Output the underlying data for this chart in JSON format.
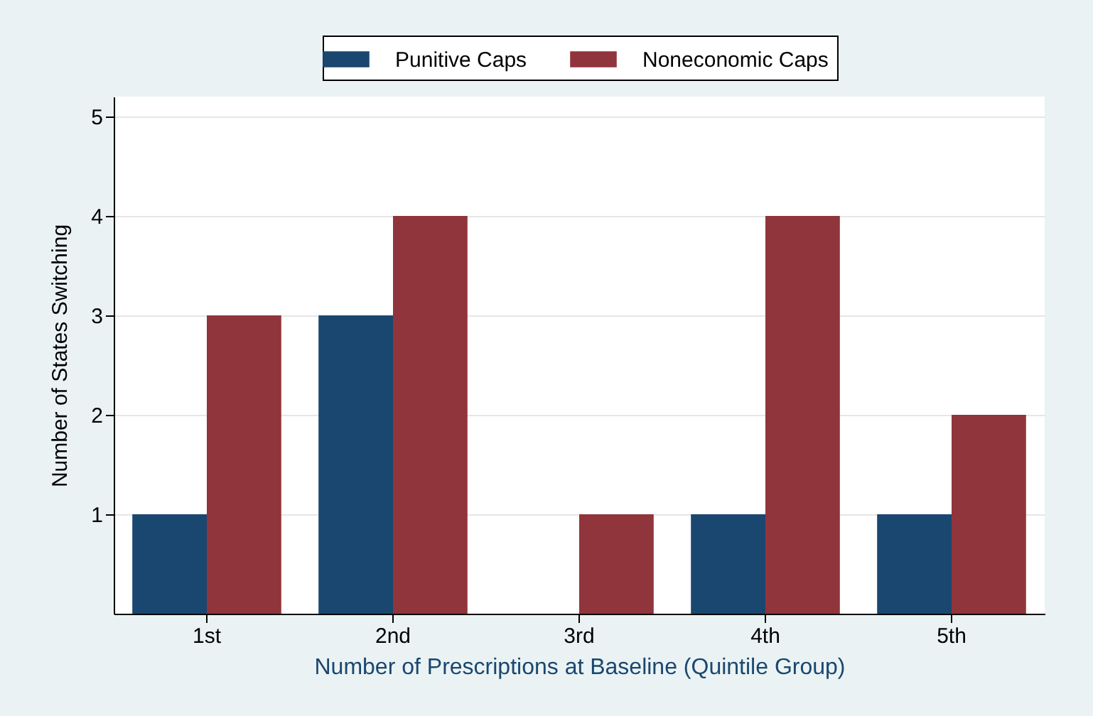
{
  "chart_data": {
    "type": "bar",
    "xlabel": "Number of Prescriptions at Baseline (Quintile Group)",
    "ylabel": "Number of States Switching",
    "categories": [
      "1st",
      "2nd",
      "3rd",
      "4th",
      "5th"
    ],
    "series": [
      {
        "name": "Punitive Caps",
        "color": "#1a476f",
        "values": [
          1,
          3,
          0,
          1,
          1
        ]
      },
      {
        "name": "Noneconomic Caps",
        "color": "#90353b",
        "values": [
          3,
          4,
          1,
          4,
          2
        ]
      }
    ],
    "ylim": [
      0,
      5.2
    ],
    "yticks": [
      1,
      2,
      3,
      4,
      5
    ],
    "grid": "y",
    "legend": "top"
  }
}
